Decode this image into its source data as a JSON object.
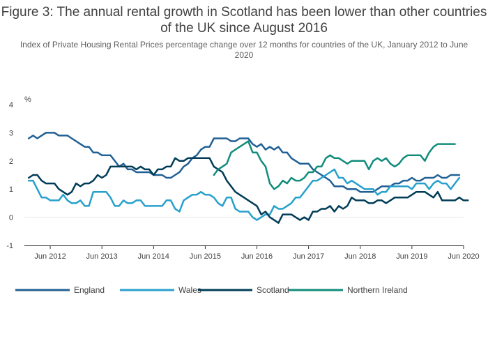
{
  "chart_data": {
    "type": "line",
    "title": "Figure 3: The annual rental growth in Scotland has been lower than other countries of the UK since August 2016",
    "subtitle": "Index of Private Housing Rental Prices percentage change over 12 months for countries of the UK, January 2012 to June 2020",
    "ylabel": "%",
    "xlabel": "",
    "ylim": [
      -1,
      4
    ],
    "yticks": [
      -1,
      0,
      1,
      2,
      3,
      4
    ],
    "xlim": [
      "2011-12",
      "2020-06"
    ],
    "xticks": [
      {
        "date": "2012-06",
        "label": "Jun 2012"
      },
      {
        "date": "2013-06",
        "label": "Jun 2013"
      },
      {
        "date": "2014-06",
        "label": "Jun 2014"
      },
      {
        "date": "2015-06",
        "label": "Jun 2015"
      },
      {
        "date": "2016-06",
        "label": "Jun 2016"
      },
      {
        "date": "2017-06",
        "label": "Jun 2017"
      },
      {
        "date": "2018-06",
        "label": "Jun 2018"
      },
      {
        "date": "2019-06",
        "label": "Jun 2019"
      },
      {
        "date": "2020-06",
        "label": "Jun 2020"
      }
    ],
    "grid": false,
    "legend_position": "bottom",
    "series": [
      {
        "name": "England",
        "color": "#206095",
        "start": "2012-01",
        "values": [
          2.8,
          2.9,
          2.8,
          2.9,
          3.0,
          3.0,
          3.0,
          2.9,
          2.9,
          2.9,
          2.8,
          2.7,
          2.6,
          2.5,
          2.5,
          2.3,
          2.3,
          2.2,
          2.2,
          2.2,
          2.0,
          1.8,
          1.9,
          1.7,
          1.7,
          1.6,
          1.6,
          1.6,
          1.6,
          1.5,
          1.5,
          1.5,
          1.4,
          1.4,
          1.5,
          1.6,
          1.8,
          1.9,
          2.1,
          2.2,
          2.4,
          2.5,
          2.5,
          2.8,
          2.8,
          2.8,
          2.8,
          2.7,
          2.7,
          2.8,
          2.8,
          2.8,
          2.6,
          2.5,
          2.6,
          2.4,
          2.5,
          2.4,
          2.5,
          2.3,
          2.3,
          2.1,
          2.0,
          1.9,
          1.9,
          1.9,
          1.7,
          1.6,
          1.5,
          1.4,
          1.3,
          1.1,
          1.1,
          1.1,
          1.0,
          1.0,
          1.0,
          0.9,
          0.9,
          0.9,
          0.9,
          1.0,
          1.1,
          1.1,
          1.1,
          1.2,
          1.2,
          1.3,
          1.3,
          1.4,
          1.3,
          1.3,
          1.4,
          1.4,
          1.4,
          1.5,
          1.4,
          1.4,
          1.5,
          1.5,
          1.5
        ]
      },
      {
        "name": "Wales",
        "color": "#27a0cc",
        "start": "2012-01",
        "values": [
          1.3,
          1.3,
          1.0,
          0.7,
          0.7,
          0.6,
          0.6,
          0.6,
          0.8,
          0.6,
          0.5,
          0.5,
          0.6,
          0.4,
          0.4,
          0.9,
          0.9,
          0.9,
          0.9,
          0.7,
          0.4,
          0.4,
          0.6,
          0.5,
          0.5,
          0.6,
          0.6,
          0.4,
          0.4,
          0.4,
          0.4,
          0.4,
          0.6,
          0.6,
          0.3,
          0.2,
          0.6,
          0.7,
          0.8,
          0.8,
          0.9,
          0.8,
          0.8,
          0.7,
          0.5,
          0.4,
          0.7,
          0.7,
          0.3,
          0.2,
          0.2,
          0.2,
          0.0,
          -0.1,
          0.0,
          0.1,
          0.1,
          0.4,
          0.3,
          0.3,
          0.4,
          0.5,
          0.7,
          0.7,
          0.9,
          1.1,
          1.3,
          1.3,
          1.4,
          1.5,
          1.6,
          1.7,
          1.4,
          1.4,
          1.2,
          1.3,
          1.2,
          1.1,
          1.0,
          1.0,
          1.0,
          0.8,
          0.9,
          0.9,
          1.1,
          1.1,
          1.1,
          1.1,
          1.1,
          1.0,
          1.2,
          1.2,
          1.2,
          1.0,
          1.2,
          1.3,
          1.2,
          1.2,
          1.0,
          1.2,
          1.4
        ]
      },
      {
        "name": "Scotland",
        "color": "#003c57",
        "start": "2012-01",
        "values": [
          1.4,
          1.5,
          1.5,
          1.3,
          1.2,
          1.2,
          1.2,
          1.0,
          0.9,
          0.8,
          0.9,
          1.2,
          1.1,
          1.2,
          1.2,
          1.3,
          1.5,
          1.4,
          1.5,
          1.8,
          1.8,
          1.8,
          1.8,
          1.8,
          1.8,
          1.7,
          1.8,
          1.7,
          1.7,
          1.5,
          1.7,
          1.7,
          1.8,
          1.8,
          2.1,
          2.0,
          2.0,
          2.1,
          2.1,
          2.1,
          2.1,
          2.1,
          2.1,
          1.8,
          1.7,
          1.6,
          1.3,
          1.1,
          0.9,
          0.8,
          0.7,
          0.6,
          0.5,
          0.4,
          0.1,
          0.2,
          0.0,
          -0.1,
          -0.2,
          0.1,
          0.1,
          0.1,
          0.0,
          -0.1,
          0.0,
          -0.1,
          0.2,
          0.2,
          0.3,
          0.3,
          0.4,
          0.2,
          0.4,
          0.3,
          0.4,
          0.7,
          0.6,
          0.6,
          0.6,
          0.5,
          0.5,
          0.6,
          0.6,
          0.5,
          0.6,
          0.7,
          0.7,
          0.7,
          0.7,
          0.8,
          0.9,
          0.9,
          0.9,
          0.8,
          0.7,
          0.9,
          0.6,
          0.6,
          0.6,
          0.6,
          0.7,
          0.6,
          0.6
        ]
      },
      {
        "name": "Northern Ireland",
        "color": "#118c7b",
        "start": "2015-08",
        "values": [
          1.5,
          1.7,
          1.8,
          1.9,
          2.3,
          2.4,
          2.5,
          2.6,
          2.7,
          2.3,
          2.3,
          2.0,
          1.8,
          1.2,
          1.0,
          1.1,
          1.3,
          1.2,
          1.4,
          1.3,
          1.3,
          1.4,
          1.6,
          1.6,
          1.8,
          1.8,
          2.1,
          2.2,
          2.1,
          2.1,
          2.0,
          1.9,
          2.0,
          2.0,
          2.0,
          2.0,
          1.7,
          2.0,
          2.1,
          2.0,
          2.1,
          1.9,
          1.8,
          1.9,
          2.1,
          2.2,
          2.2,
          2.2,
          2.2,
          2.0,
          2.3,
          2.5,
          2.6,
          2.6,
          2.6,
          2.6,
          2.6
        ]
      }
    ]
  }
}
